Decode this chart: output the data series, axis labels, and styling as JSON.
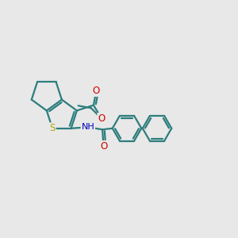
{
  "background_color": "#e8e8e8",
  "bond_color": "#2d7d7d",
  "sulfur_color": "#aaaa00",
  "nitrogen_color": "#0000bb",
  "oxygen_color": "#cc0000",
  "line_width": 1.6,
  "figsize": [
    3.0,
    3.0
  ],
  "dpi": 100,
  "xlim": [
    0,
    10
  ],
  "ylim": [
    0,
    10
  ]
}
